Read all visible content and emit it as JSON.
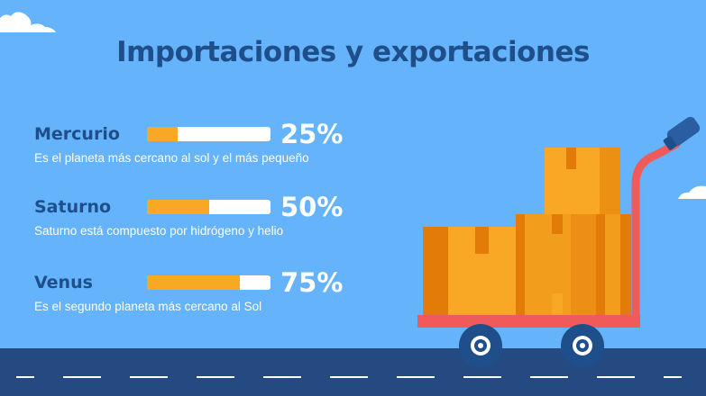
{
  "title": "Importaciones y exportaciones",
  "items": [
    {
      "label": "Mercurio",
      "percent_text": "25%",
      "value": 0.25,
      "desc": "Es el planeta más cercano al sol y el más pequeño"
    },
    {
      "label": "Saturno",
      "percent_text": "50%",
      "value": 0.5,
      "desc": "Saturno está compuesto por hidrógeno y helio"
    },
    {
      "label": "Venus",
      "percent_text": "75%",
      "value": 0.75,
      "desc": "Es el segundo planeta más cercano al Sol"
    }
  ],
  "colors": {
    "background": "#64b3fb",
    "title": "#1f4f8a",
    "bar_fill": "#f9a825",
    "bar_track": "#ffffff",
    "road": "#254a82",
    "cart": "#f05a5a",
    "box": "#f9a825",
    "box_shade": "#e27b08"
  }
}
